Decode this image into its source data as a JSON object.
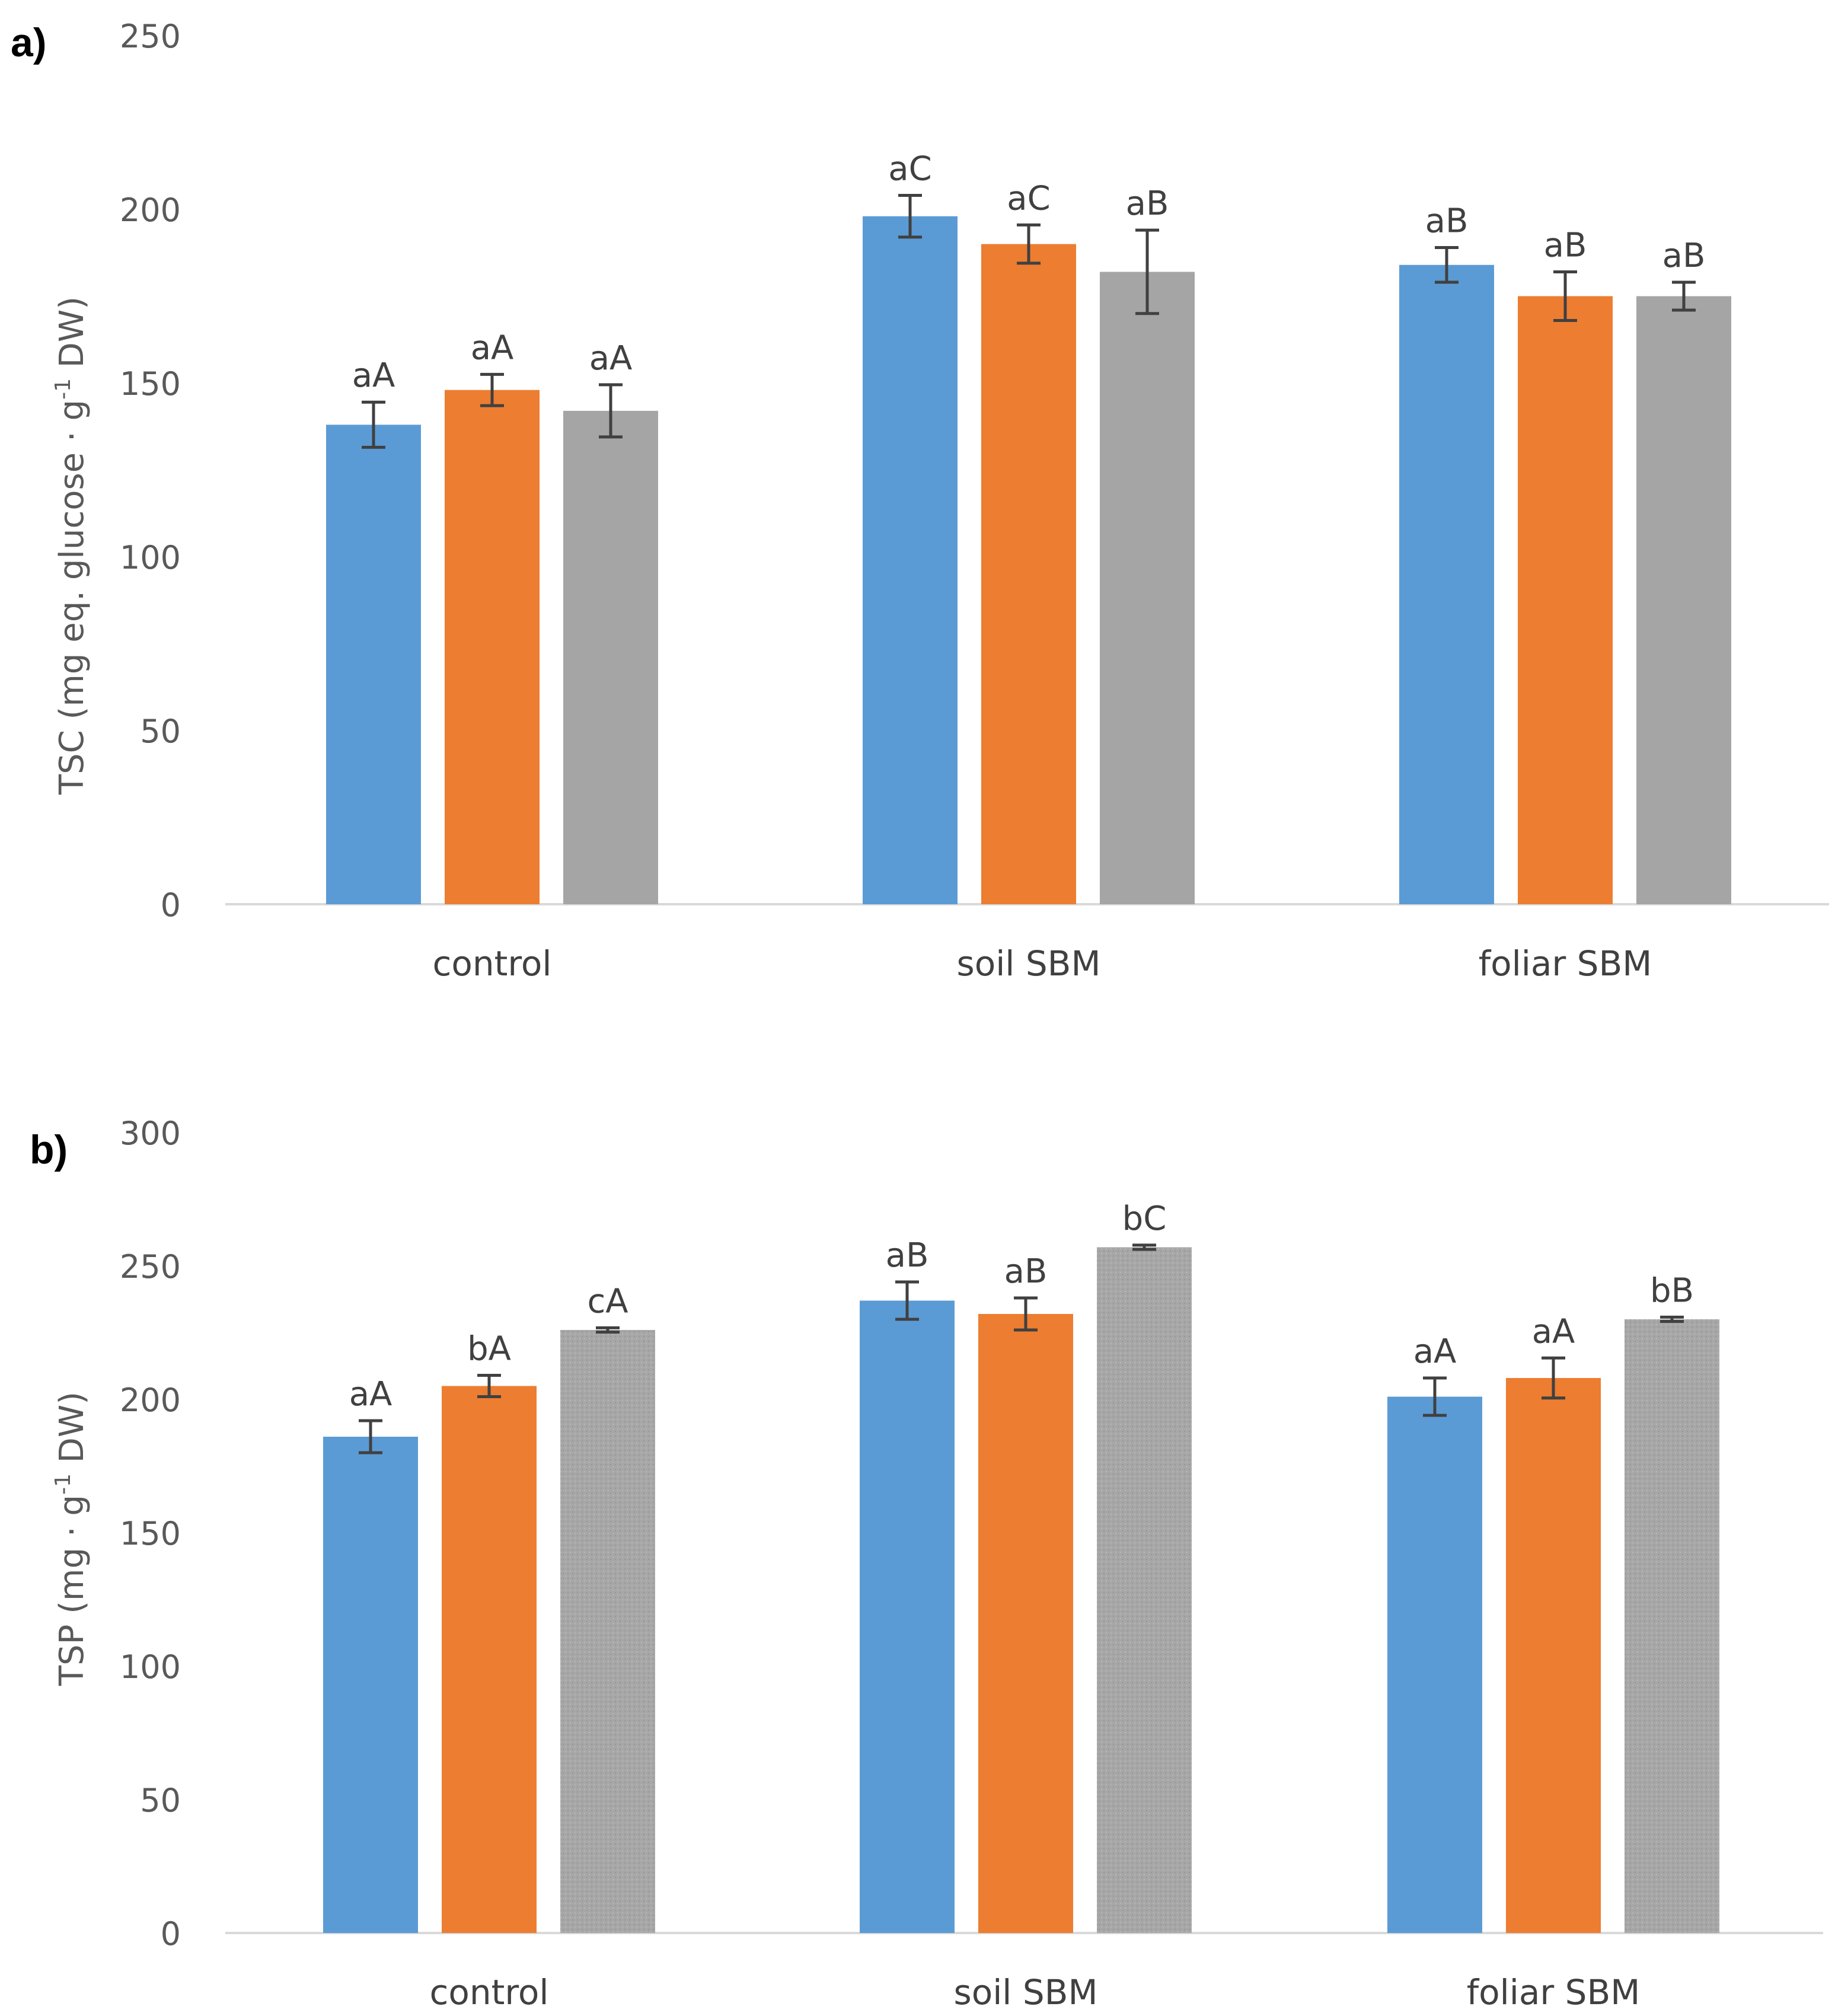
{
  "chart_data": [
    {
      "panel_label": "a)",
      "type": "bar",
      "ylabel_main": "TSC (mg eq. glucose · g",
      "ylabel_sup": "-1",
      "ylabel_tail": " DW)",
      "ylim": [
        0,
        250
      ],
      "yticks": [
        0,
        50,
        100,
        150,
        200,
        250
      ],
      "ytick_labels": [
        "0",
        "50",
        "100",
        "150",
        "200",
        "250"
      ],
      "categories": [
        "control",
        "soil SBM",
        "foliar SBM"
      ],
      "series": [
        {
          "color": "#5b9bd5",
          "values": [
            138,
            198,
            184
          ],
          "errors": [
            6.5,
            6,
            5
          ],
          "labels": [
            "aA",
            "aC",
            "aB"
          ]
        },
        {
          "color": "#ed7d31",
          "values": [
            148,
            190,
            175
          ],
          "errors": [
            4.5,
            5.5,
            7
          ],
          "labels": [
            "aA",
            "aC",
            "aB"
          ]
        },
        {
          "color": "#a5a5a5",
          "values": [
            142,
            182,
            175
          ],
          "errors": [
            7.5,
            12,
            4
          ],
          "labels": [
            "aA",
            "aB",
            "aB"
          ]
        }
      ],
      "grid": false,
      "legend": "none"
    },
    {
      "panel_label": "b)",
      "type": "bar",
      "ylabel_main": "TSP (mg · g",
      "ylabel_sup": "-1",
      "ylabel_tail": " DW)",
      "ylim": [
        0,
        300
      ],
      "yticks": [
        0,
        50,
        100,
        150,
        200,
        250,
        300
      ],
      "ytick_labels": [
        "0",
        "50",
        "100",
        "150",
        "200",
        "250",
        "300"
      ],
      "categories": [
        "control",
        "soil SBM",
        "foliar SBM"
      ],
      "series": [
        {
          "color": "#5b9bd5",
          "values": [
            186,
            237,
            201
          ],
          "errors": [
            6,
            7,
            7
          ],
          "labels": [
            "aA",
            "aB",
            "aA"
          ]
        },
        {
          "color": "#ed7d31",
          "values": [
            205,
            232,
            208
          ],
          "errors": [
            4,
            6,
            7.5
          ],
          "labels": [
            "bA",
            "aB",
            "aA"
          ]
        },
        {
          "color": "#a5a5a5",
          "values": [
            226,
            257,
            230
          ],
          "errors": [
            0.8,
            0.8,
            0.8
          ],
          "labels": [
            "cA",
            "bC",
            "bB"
          ]
        }
      ],
      "grid": false,
      "legend": "none"
    }
  ]
}
